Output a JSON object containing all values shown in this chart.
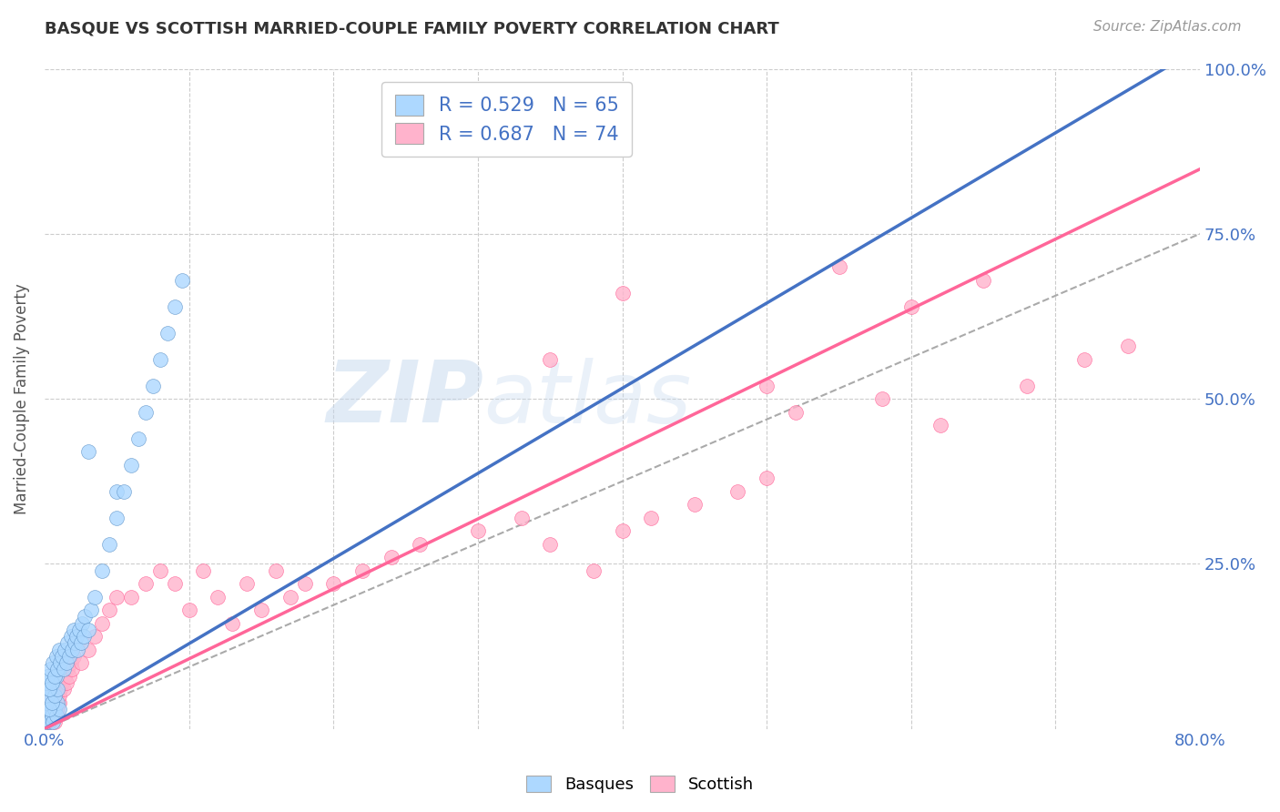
{
  "title": "BASQUE VS SCOTTISH MARRIED-COUPLE FAMILY POVERTY CORRELATION CHART",
  "source": "Source: ZipAtlas.com",
  "ylabel": "Married-Couple Family Poverty",
  "xlim": [
    0,
    0.8
  ],
  "ylim": [
    0,
    1.0
  ],
  "xtick_positions": [
    0.0,
    0.1,
    0.2,
    0.3,
    0.4,
    0.5,
    0.6,
    0.7,
    0.8
  ],
  "xticklabels": [
    "0.0%",
    "",
    "",
    "",
    "",
    "",
    "",
    "",
    "80.0%"
  ],
  "ytick_positions": [
    0.0,
    0.25,
    0.5,
    0.75,
    1.0
  ],
  "yticklabels": [
    "",
    "25.0%",
    "50.0%",
    "75.0%",
    "100.0%"
  ],
  "basque_fill_color": "#ADD8FF",
  "basque_edge_color": "#6699CC",
  "scottish_fill_color": "#FFB3CC",
  "scottish_edge_color": "#FF6699",
  "basque_line_color": "#4472C4",
  "scottish_line_color": "#FF6699",
  "diagonal_color": "#AAAAAA",
  "R_basque": 0.529,
  "N_basque": 65,
  "R_scottish": 0.687,
  "N_scottish": 74,
  "legend_labels": [
    "Basques",
    "Scottish"
  ],
  "watermark_text": "ZIPatlas",
  "background_color": "#FFFFFF",
  "title_color": "#333333",
  "source_color": "#999999",
  "axis_label_color": "#555555",
  "tick_color": "#4472C4",
  "legend_text_color": "#4472C4"
}
